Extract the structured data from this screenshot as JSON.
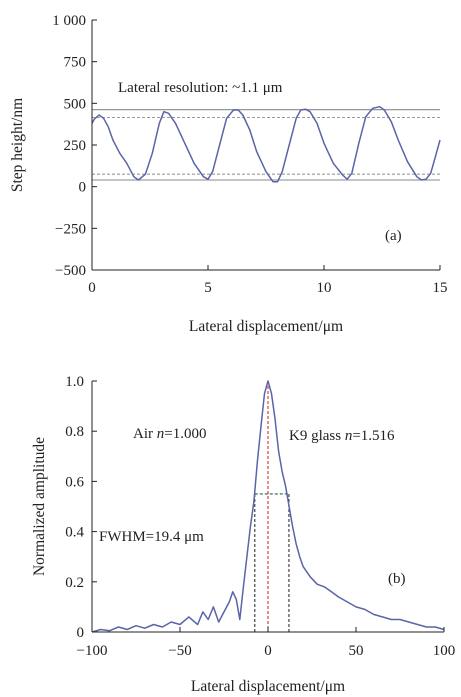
{
  "chart_data": [
    {
      "type": "line",
      "panel_label": "(a)",
      "xlabel": "Lateral displacement/μm",
      "ylabel": "Step height/nm",
      "xlim": [
        0,
        15
      ],
      "ylim": [
        -500,
        1000
      ],
      "xticks": [
        0,
        5,
        10,
        15
      ],
      "xtick_labels": [
        "0",
        "5",
        "10",
        "15"
      ],
      "yticks": [
        -500,
        -250,
        0,
        250,
        500,
        750,
        1000
      ],
      "ytick_labels": [
        "−500",
        "−250",
        "0",
        "250",
        "500",
        "750",
        "1 000"
      ],
      "annotation": "Lateral resolution: ~1.1 μm",
      "reference_lines": [
        {
          "y": 462,
          "style": "solid"
        },
        {
          "y": 415,
          "style": "dashed"
        },
        {
          "y": 75,
          "style": "dashed"
        },
        {
          "y": 40,
          "style": "solid"
        }
      ],
      "series": [
        {
          "color": "#5a64a8",
          "x": [
            0,
            0.1,
            0.3,
            0.5,
            0.7,
            0.9,
            1.2,
            1.5,
            1.8,
            2.0,
            2.3,
            2.6,
            2.9,
            3.1,
            3.3,
            3.6,
            4.0,
            4.4,
            4.8,
            5.0,
            5.2,
            5.5,
            5.8,
            6.1,
            6.3,
            6.5,
            6.8,
            7.1,
            7.5,
            7.8,
            8.0,
            8.2,
            8.5,
            8.8,
            9.0,
            9.2,
            9.4,
            9.7,
            10.0,
            10.4,
            10.8,
            11.0,
            11.2,
            11.5,
            11.8,
            12.1,
            12.4,
            12.6,
            12.9,
            13.2,
            13.6,
            14.0,
            14.2,
            14.4,
            14.6,
            14.8,
            15.0
          ],
          "y": [
            380,
            405,
            430,
            410,
            360,
            280,
            200,
            140,
            60,
            40,
            75,
            200,
            380,
            450,
            440,
            380,
            260,
            140,
            60,
            45,
            90,
            250,
            410,
            460,
            460,
            430,
            340,
            210,
            90,
            30,
            30,
            90,
            250,
            410,
            460,
            465,
            450,
            380,
            260,
            140,
            70,
            45,
            80,
            260,
            420,
            470,
            480,
            460,
            390,
            280,
            150,
            60,
            40,
            45,
            80,
            180,
            280
          ]
        }
      ]
    },
    {
      "type": "line",
      "panel_label": "(b)",
      "xlabel": "Lateral displacement/μm",
      "ylabel": "Normalized amplitude",
      "xlim": [
        -100,
        100
      ],
      "ylim": [
        0,
        1.0
      ],
      "xticks": [
        -100,
        -50,
        0,
        50,
        100
      ],
      "xtick_labels": [
        "−100",
        "−50",
        "0",
        "50",
        "100"
      ],
      "yticks": [
        0,
        0.2,
        0.4,
        0.6,
        0.8,
        1.0
      ],
      "ytick_labels": [
        "0",
        "0.2",
        "0.4",
        "0.6",
        "0.8",
        "1.0"
      ],
      "annotations": [
        "Air n=1.000",
        "K9 glass n=1.516",
        "FWHM=19.4 μm"
      ],
      "annotation_parts": {
        "air_text": "Air ",
        "air_n": "n",
        "air_value": "=1.000",
        "glass_text": "K9 glass ",
        "glass_n": "n",
        "glass_value": "=1.516",
        "fwhm": "FWHM=19.4 μm"
      },
      "fwhm": {
        "left": -7.5,
        "right": 11.9,
        "level": 0.55
      },
      "center_line_x": 0,
      "series": [
        {
          "color": "#5a64a8",
          "x": [
            -100,
            -95,
            -90,
            -85,
            -80,
            -75,
            -70,
            -65,
            -60,
            -55,
            -50,
            -45,
            -40,
            -37,
            -34,
            -31,
            -28,
            -25,
            -22,
            -20,
            -18,
            -16,
            -14,
            -12,
            -10,
            -8,
            -6,
            -4,
            -2,
            0,
            2,
            4,
            6,
            8,
            10,
            12,
            14,
            16,
            18,
            20,
            24,
            28,
            32,
            36,
            40,
            45,
            50,
            55,
            60,
            65,
            70,
            75,
            80,
            85,
            90,
            95,
            100
          ],
          "y": [
            0,
            0.01,
            0.005,
            0.02,
            0.01,
            0.025,
            0.015,
            0.03,
            0.02,
            0.04,
            0.03,
            0.06,
            0.03,
            0.08,
            0.05,
            0.1,
            0.04,
            0.08,
            0.12,
            0.16,
            0.13,
            0.05,
            0.18,
            0.3,
            0.42,
            0.52,
            0.68,
            0.82,
            0.95,
            1.0,
            0.95,
            0.85,
            0.72,
            0.64,
            0.58,
            0.5,
            0.42,
            0.35,
            0.3,
            0.26,
            0.22,
            0.19,
            0.18,
            0.16,
            0.14,
            0.12,
            0.1,
            0.09,
            0.07,
            0.06,
            0.05,
            0.05,
            0.04,
            0.03,
            0.02,
            0.02,
            0.01
          ]
        }
      ]
    }
  ]
}
